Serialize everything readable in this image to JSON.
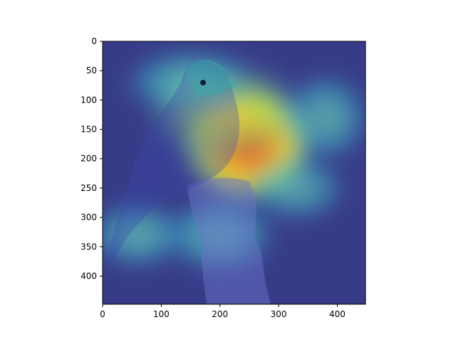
{
  "chart_data": {
    "type": "heatmap",
    "title": "",
    "xlabel": "",
    "ylabel": "",
    "xlim": [
      0,
      448
    ],
    "ylim": [
      448,
      0
    ],
    "xticks": [
      0,
      100,
      200,
      300,
      400
    ],
    "yticks": [
      0,
      50,
      100,
      150,
      200,
      250,
      300,
      350,
      400
    ],
    "grid": false,
    "legend": "none",
    "colormap": "jet",
    "image_subject": "bird-on-stump",
    "hotspots": [
      {
        "x": 245,
        "y": 175,
        "rx": 115,
        "ry": 100,
        "intensity": 1.0
      },
      {
        "x": 210,
        "y": 120,
        "rx": 140,
        "ry": 90,
        "intensity": 0.55
      },
      {
        "x": 150,
        "y": 70,
        "rx": 120,
        "ry": 60,
        "intensity": 0.45
      },
      {
        "x": 60,
        "y": 330,
        "rx": 90,
        "ry": 60,
        "intensity": 0.4
      },
      {
        "x": 200,
        "y": 330,
        "rx": 100,
        "ry": 70,
        "intensity": 0.45
      },
      {
        "x": 380,
        "y": 130,
        "rx": 80,
        "ry": 80,
        "intensity": 0.35
      },
      {
        "x": 330,
        "y": 250,
        "rx": 90,
        "ry": 60,
        "intensity": 0.3
      }
    ]
  },
  "colors": {
    "background_low": "#2b2f8a",
    "cold": "#2c3aa0",
    "cool": "#3fb8c8",
    "mid": "#b9e04a",
    "warm": "#f0b030",
    "hot": "#e23a1c"
  }
}
